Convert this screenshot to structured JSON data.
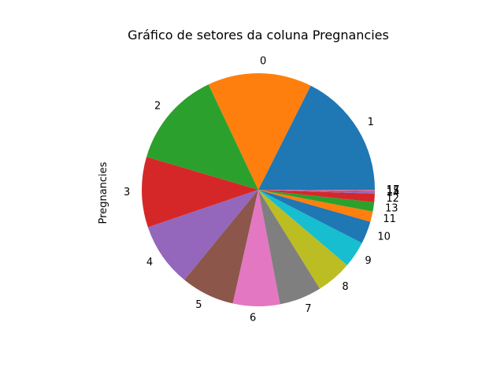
{
  "chart_data": {
    "type": "pie",
    "title": "Gráfico de setores da coluna Pregnancies",
    "ylabel": "Pregnancies",
    "xlabel": "",
    "start_angle_deg": 0,
    "direction": "counterclockwise",
    "slices": [
      {
        "label": "1",
        "value": 135,
        "color": "#1f77b4"
      },
      {
        "label": "0",
        "value": 111,
        "color": "#ff7f0e"
      },
      {
        "label": "2",
        "value": 103,
        "color": "#2ca02c"
      },
      {
        "label": "3",
        "value": 75,
        "color": "#d62728"
      },
      {
        "label": "4",
        "value": 68,
        "color": "#9467bd"
      },
      {
        "label": "5",
        "value": 57,
        "color": "#8c564b"
      },
      {
        "label": "6",
        "value": 50,
        "color": "#e377c2"
      },
      {
        "label": "7",
        "value": 45,
        "color": "#7f7f7f"
      },
      {
        "label": "8",
        "value": 38,
        "color": "#bcbd22"
      },
      {
        "label": "9",
        "value": 28,
        "color": "#17becf"
      },
      {
        "label": "10",
        "value": 24,
        "color": "#1f77b4"
      },
      {
        "label": "11",
        "value": 11,
        "color": "#ff7f0e"
      },
      {
        "label": "13",
        "value": 10,
        "color": "#2ca02c"
      },
      {
        "label": "12",
        "value": 9,
        "color": "#d62728"
      },
      {
        "label": "14",
        "value": 2,
        "color": "#9467bd"
      },
      {
        "label": "15",
        "value": 1,
        "color": "#8c564b"
      },
      {
        "label": "17",
        "value": 1,
        "color": "#e377c2"
      }
    ]
  }
}
